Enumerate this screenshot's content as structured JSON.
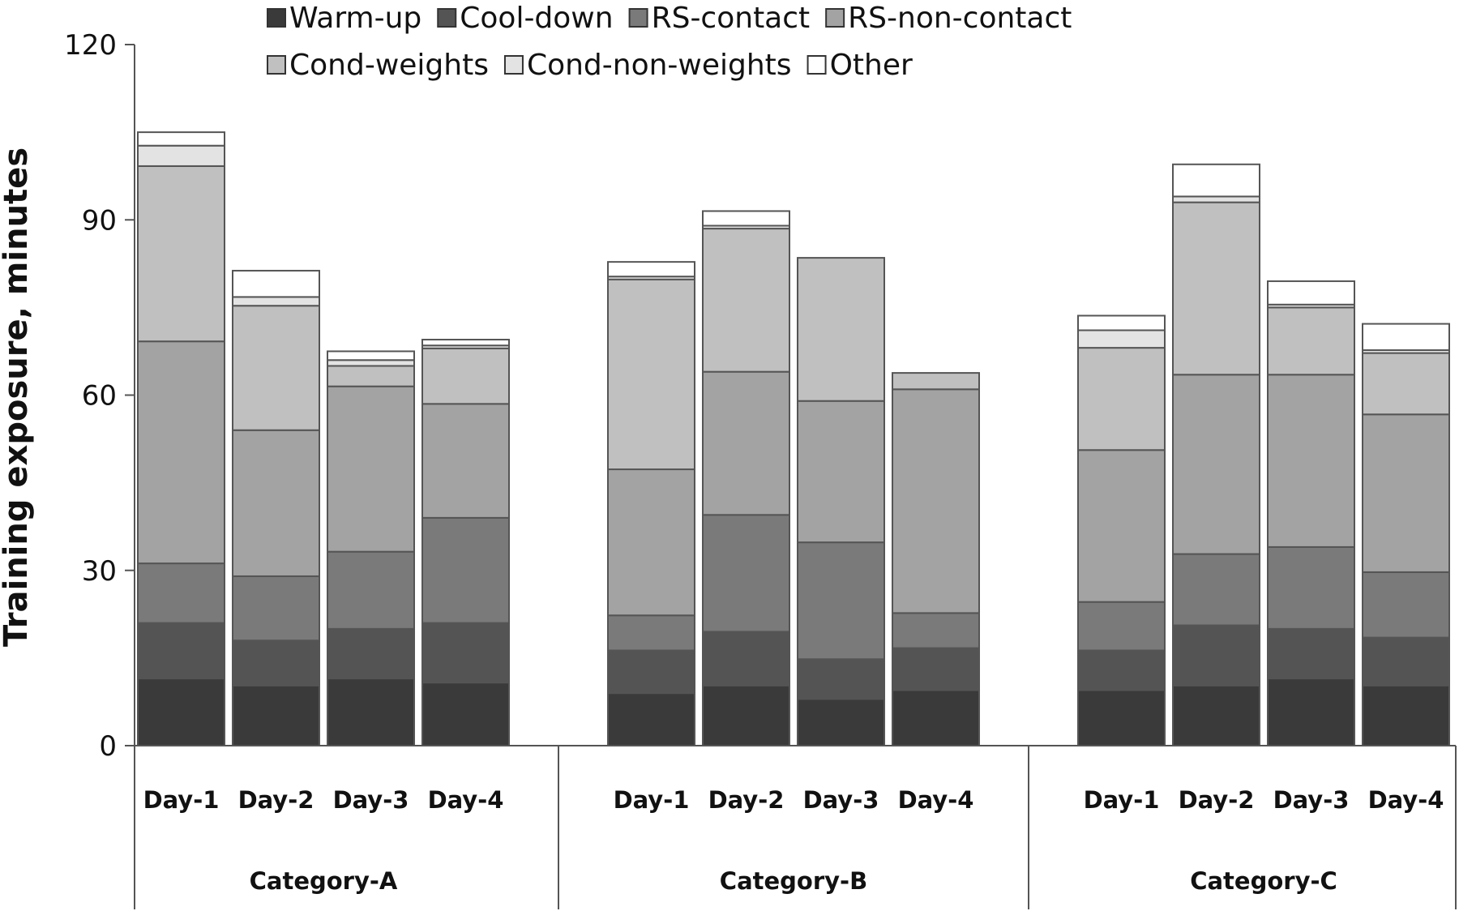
{
  "chart_data": {
    "type": "bar",
    "stacked": true,
    "ylabel": "Training exposure, minutes",
    "ylim": [
      0,
      120
    ],
    "yticks": [
      0,
      30,
      60,
      90,
      120
    ],
    "grid": false,
    "legend_position": "top",
    "groups": [
      {
        "label": "Category-A",
        "days": [
          "Day-1",
          "Day-2",
          "Day-3",
          "Day-4"
        ]
      },
      {
        "label": "Category-B",
        "days": [
          "Day-1",
          "Day-2",
          "Day-3",
          "Day-4"
        ]
      },
      {
        "label": "Category-C",
        "days": [
          "Day-1",
          "Day-2",
          "Day-3",
          "Day-4"
        ]
      }
    ],
    "series": [
      {
        "name": "Warm-up",
        "color": "#3a3a3a",
        "values": [
          11.5,
          10.3,
          11.5,
          10.8,
          9.0,
          10.3,
          8.0,
          9.5,
          9.5,
          10.3,
          11.5,
          10.3
        ]
      },
      {
        "name": "Cool-down",
        "color": "#545454",
        "values": [
          9.5,
          7.7,
          8.5,
          10.2,
          7.3,
          9.2,
          6.8,
          7.2,
          6.8,
          10.3,
          8.5,
          8.2
        ]
      },
      {
        "name": "RS-contact",
        "color": "#7a7a7a",
        "values": [
          10.2,
          11.0,
          13.2,
          18.0,
          6.0,
          20.0,
          20.0,
          6.0,
          8.3,
          12.2,
          14.0,
          11.2
        ]
      },
      {
        "name": "RS-non-contact",
        "color": "#a3a3a3",
        "values": [
          38.0,
          25.0,
          28.3,
          19.5,
          25.0,
          24.5,
          24.2,
          38.3,
          26.0,
          30.7,
          29.5,
          27.0
        ]
      },
      {
        "name": "Cond-weights",
        "color": "#c0c0c0",
        "values": [
          30.0,
          21.3,
          3.5,
          9.5,
          32.5,
          24.5,
          24.5,
          2.8,
          17.5,
          29.5,
          11.5,
          10.5
        ]
      },
      {
        "name": "Cond-non-weights",
        "color": "#e3e3e3",
        "values": [
          3.5,
          1.5,
          1.0,
          0.5,
          0.5,
          0.5,
          0,
          0,
          3.0,
          1.0,
          0.5,
          0.5
        ]
      },
      {
        "name": "Other",
        "color": "#ffffff",
        "values": [
          2.3,
          4.5,
          1.5,
          1.0,
          2.5,
          2.5,
          0,
          0,
          2.5,
          5.5,
          4.0,
          4.5
        ]
      }
    ]
  }
}
